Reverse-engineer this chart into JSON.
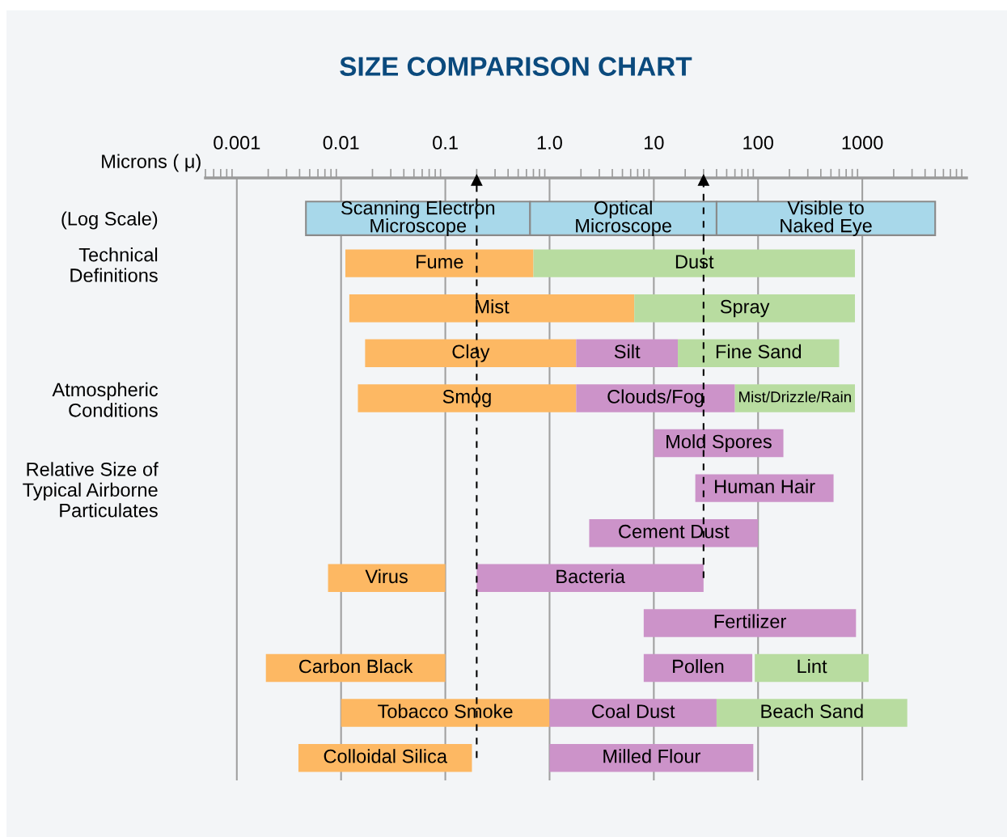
{
  "chart_data": {
    "type": "bar",
    "orientation": "horizontal",
    "log": "x",
    "title": "SIZE COMPARISON CHART",
    "xlabel": "Microns ( μ)",
    "categories": [
      "(Log Scale)",
      "Technical\nDefinitions",
      null,
      null,
      "Atmospheric\nConditions",
      null,
      "Relative Size of\nTypical Airborne\nParticulates",
      null,
      null,
      null,
      null,
      null,
      null
    ],
    "xlim": [
      0.0005,
      10000
    ],
    "xticks": [
      0.001,
      0.01,
      0.1,
      {
        "value": 1,
        "label": "1.0"
      },
      10,
      100,
      1000
    ],
    "grid": "x",
    "series": [
      {
        "color": "#fdb863",
        "base": [
          null,
          0.011,
          0.012,
          0.017,
          0.0145,
          null,
          null,
          null,
          0.0075,
          null,
          0.0019,
          0.01,
          0.0039
        ],
        "values": [
          null,
          0.689,
          6.488,
          1.783,
          1.7855,
          null,
          null,
          null,
          0.0925,
          null,
          0.0981,
          0.99,
          0.1761
        ],
        "value_labels": [
          null,
          "Fume",
          "Mist",
          "Clay",
          "Smog",
          null,
          null,
          null,
          "Virus",
          null,
          "Carbon Black",
          "Tobacco Smoke",
          "Colloidal Silica"
        ]
      },
      {
        "color": "#cc93c9",
        "base": [
          null,
          null,
          null,
          1.8,
          1.8,
          10,
          25,
          2.4,
          0.2,
          8,
          8,
          1,
          1
        ],
        "values": [
          null,
          null,
          null,
          15.2,
          58.2,
          165,
          505,
          97.6,
          29.8,
          862,
          80,
          39,
          89
        ],
        "value_labels": [
          null,
          null,
          null,
          "Silt",
          "Clouds/Fog",
          "Mold Spores",
          "Human Hair",
          "Cement Dust",
          "Bacteria",
          "Fertilizer",
          "Pollen",
          "Coal Dust",
          "Milled Flour"
        ]
      },
      {
        "color": "#b8dca0",
        "base": [
          null,
          0.7,
          6.5,
          17,
          60,
          null,
          null,
          null,
          null,
          null,
          93,
          40,
          null
        ],
        "values": [
          null,
          849.3,
          843.5,
          583,
          790,
          null,
          null,
          null,
          null,
          null,
          1057,
          2660,
          null
        ],
        "value_labels": [
          null,
          "Dust",
          "Spray",
          "Fine Sand",
          "Mist/Drizzle/Rain",
          null,
          null,
          null,
          null,
          null,
          "Lint",
          "Beach Sand",
          null
        ]
      },
      {
        "color": "#a8d8ea",
        "base": [
          0.0046,
          null,
          null,
          null,
          null,
          null,
          null,
          null,
          null,
          null,
          null,
          null,
          null
        ],
        "values": [
          0.6454,
          null,
          null,
          null,
          null,
          null,
          null,
          null,
          null,
          null,
          null,
          null,
          null
        ],
        "value_labels": [
          "Scanning Electron\nMicroscope",
          null,
          null,
          null,
          null,
          null,
          null,
          null,
          null,
          null,
          null,
          null,
          null
        ]
      },
      {
        "color": "#a8d8ea",
        "base": [
          0.65,
          null,
          null,
          null,
          null,
          null,
          null,
          null,
          null,
          null,
          null,
          null,
          null
        ],
        "values": [
          39.35,
          null,
          null,
          null,
          null,
          null,
          null,
          null,
          null,
          null,
          null,
          null,
          null
        ],
        "value_labels": [
          "Optical\nMicroscope",
          null,
          null,
          null,
          null,
          null,
          null,
          null,
          null,
          null,
          null,
          null,
          null
        ]
      },
      {
        "color": "#a8d8ea",
        "base": [
          40,
          null,
          null,
          null,
          null,
          null,
          null,
          null,
          null,
          null,
          null,
          null,
          null
        ],
        "values": [
          4960,
          null,
          null,
          null,
          null,
          null,
          null,
          null,
          null,
          null,
          null,
          null,
          null
        ],
        "value_labels": [
          "Visible to\nNaked Eye",
          null,
          null,
          null,
          null,
          null,
          null,
          null,
          null,
          null,
          null,
          null,
          null
        ]
      }
    ],
    "ref_lines": [
      {
        "axis": "x",
        "value": 0.2,
        "color": "#000000",
        "line_style": "dashed"
      },
      {
        "axis": "x",
        "value": 30,
        "color": "#000000",
        "line_style": "dashed"
      }
    ]
  }
}
